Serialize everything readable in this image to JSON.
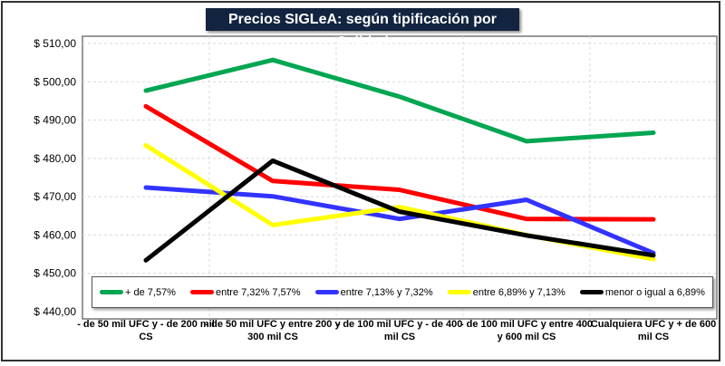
{
  "chart_data": {
    "type": "line",
    "title": "Precios SIGLeA: según tipificación por Calidad",
    "categories": [
      [
        "- de 50 mil UFC y - de 200 mil",
        "CS"
      ],
      [
        "- de 50 mil UFC y entre  200 y",
        "300 mil CS"
      ],
      [
        "- de 100 mil UFC y - de 400",
        "mil CS"
      ],
      [
        "- de 100 mil UFC y entre  400",
        "y 600 mil CS"
      ],
      [
        "Cualquiera UFC y + de 600",
        "mil CS"
      ]
    ],
    "ylim": [
      440,
      510
    ],
    "yticks": [
      "$ 440,00",
      "$ 450,00",
      "$ 460,00",
      "$ 470,00",
      "$ 480,00",
      "$ 490,00",
      "$ 500,00",
      "$ 510,00"
    ],
    "ytick_values": [
      440,
      450,
      460,
      470,
      480,
      490,
      500,
      510
    ],
    "grid": true,
    "legend_placement": "bottom-inside",
    "series": [
      {
        "name": "+ de 7,57%",
        "color": "#00a651",
        "values": [
          497.7,
          505.7,
          496.1,
          484.5,
          486.7
        ]
      },
      {
        "name": "entre 7,32% 7,57%",
        "color": "#ff0000",
        "values": [
          493.6,
          474.1,
          471.8,
          464.2,
          464.1
        ]
      },
      {
        "name": "entre 7,13% y 7,32%",
        "color": "#3333ff",
        "values": [
          472.4,
          470.1,
          464.2,
          469.2,
          455.3
        ]
      },
      {
        "name": "entre 6,89% y 7,13%",
        "color": "#ffff00",
        "values": [
          483.4,
          462.6,
          467.3,
          460.0,
          453.7
        ]
      },
      {
        "name": "menor o igual a 6,89%",
        "color": "#000000",
        "values": [
          453.4,
          479.4,
          466.1,
          459.9,
          454.7
        ]
      }
    ]
  }
}
